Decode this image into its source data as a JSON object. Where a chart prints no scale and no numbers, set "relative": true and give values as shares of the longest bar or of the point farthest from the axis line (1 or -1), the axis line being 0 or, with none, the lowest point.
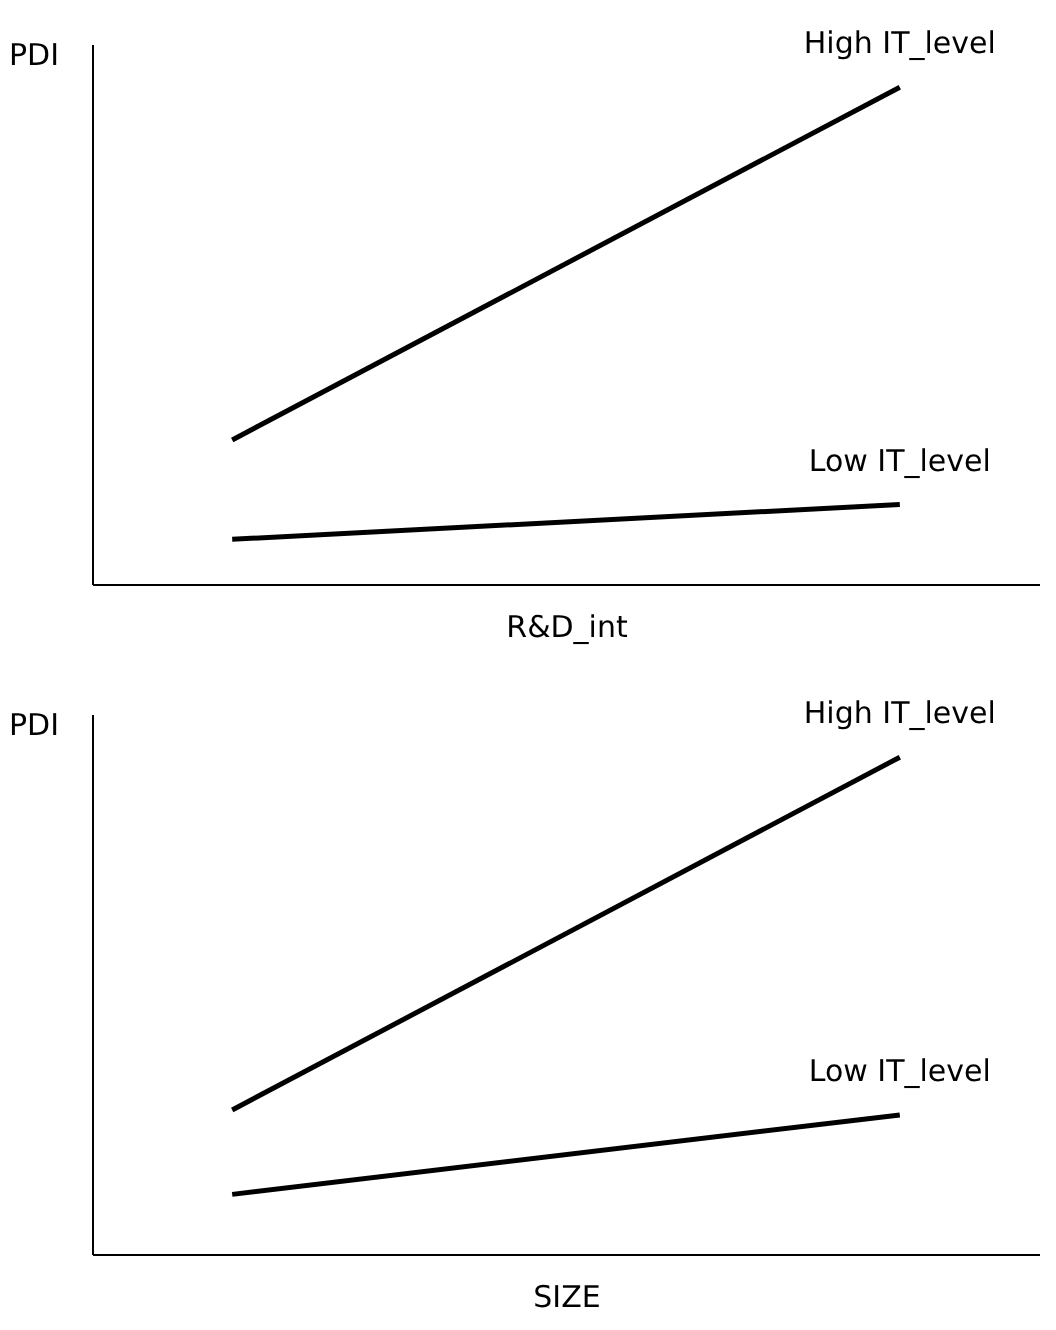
{
  "chart_data": [
    {
      "type": "line",
      "ylabel": "PDI",
      "xlabel": "R&D_int",
      "categories": [
        null,
        null
      ],
      "relative": true,
      "tick_labels": false,
      "series": [
        {
          "name": "High IT_level",
          "color": "#000000",
          "values": [
            0.29,
            1
          ]
        },
        {
          "name": "Low IT_level",
          "color": "#000000",
          "values": [
            0.09,
            0.16
          ]
        }
      ]
    },
    {
      "type": "line",
      "ylabel": "PDI",
      "xlabel": "SIZE",
      "categories": [
        null,
        null
      ],
      "relative": true,
      "tick_labels": false,
      "series": [
        {
          "name": "High IT_level",
          "color": "#000000",
          "values": [
            0.29,
            1
          ]
        },
        {
          "name": "Low IT_level",
          "color": "#000000",
          "values": [
            0.12,
            0.28
          ]
        }
      ]
    }
  ]
}
